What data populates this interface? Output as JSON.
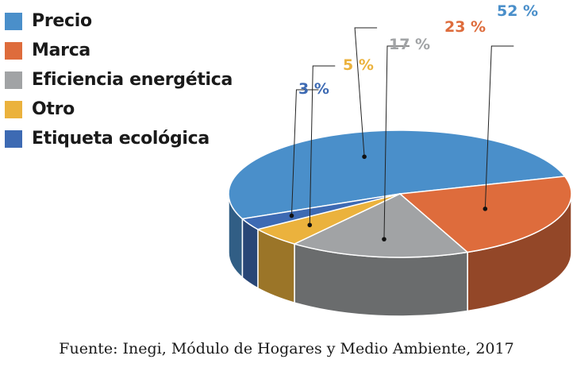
{
  "chart_data": {
    "type": "pie",
    "style": "3d",
    "categories": [
      "Precio",
      "Marca",
      "Eficiencia energética",
      "Otro",
      "Etiqueta ecológica"
    ],
    "values": [
      52,
      23,
      17,
      5,
      3
    ],
    "labels": [
      "52 %",
      "23 %",
      "17 %",
      "5 %",
      "3 %"
    ],
    "colors": [
      "#4a8fca",
      "#de6c3c",
      "#a1a3a5",
      "#ebb23d",
      "#3d6ab3"
    ],
    "legend_position": "top-left"
  },
  "source": "Fuente: Inegi, Módulo de Hogares y Medio Ambiente, 2017"
}
